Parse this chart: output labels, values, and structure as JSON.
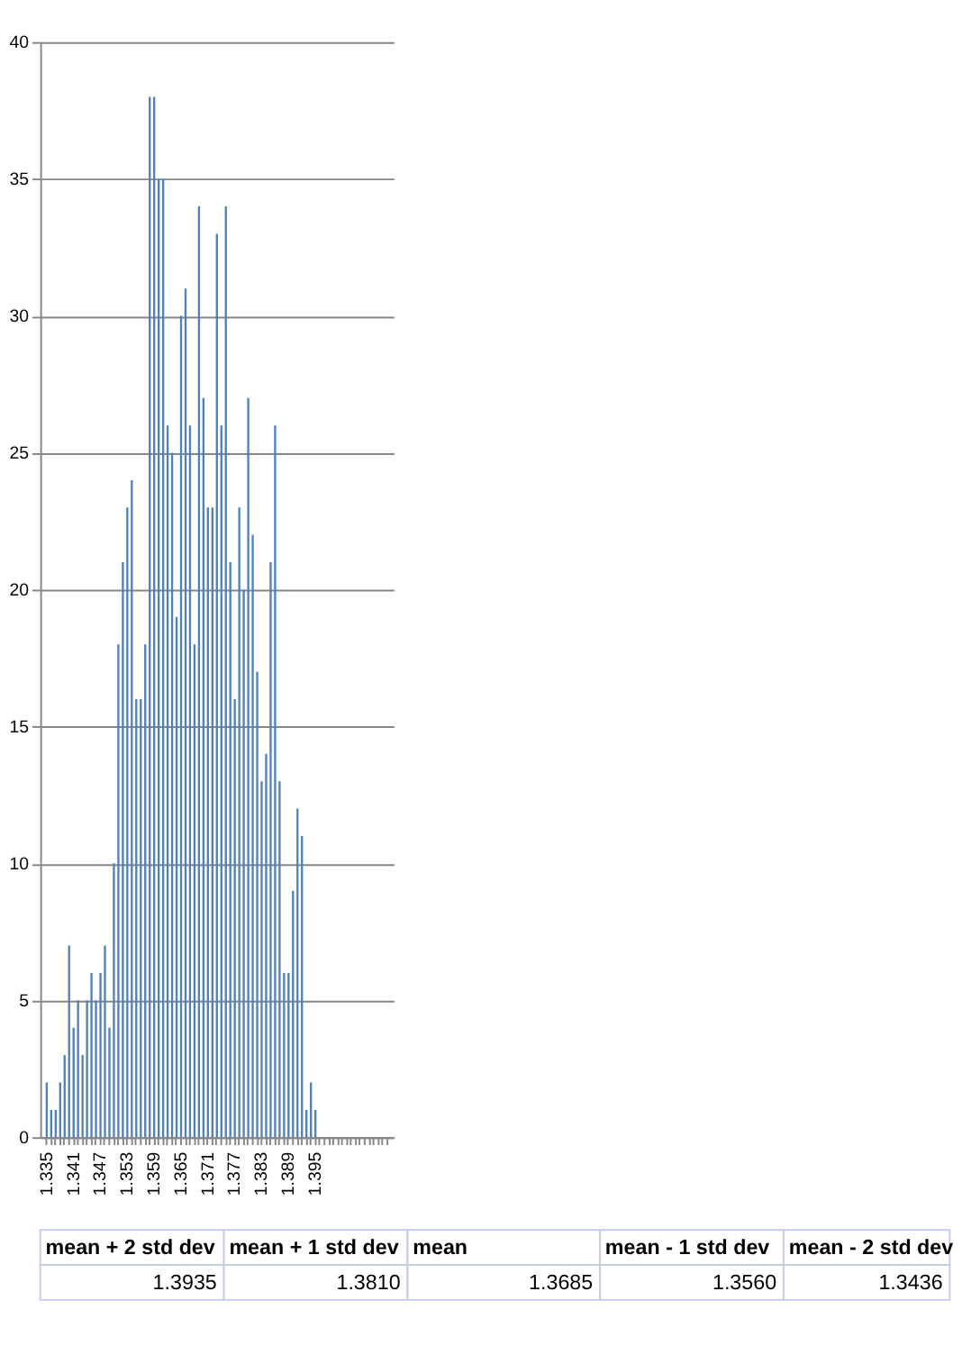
{
  "chart_data": {
    "type": "bar",
    "categories": [
      "1.335",
      null,
      null,
      null,
      null,
      null,
      "1.341",
      null,
      null,
      null,
      null,
      null,
      "1.347",
      null,
      null,
      null,
      null,
      null,
      "1.353",
      null,
      null,
      null,
      null,
      null,
      "1.359",
      null,
      null,
      null,
      null,
      null,
      "1.365",
      null,
      null,
      null,
      null,
      null,
      "1.371",
      null,
      null,
      null,
      null,
      null,
      "1.377",
      null,
      null,
      null,
      null,
      null,
      "1.383",
      null,
      null,
      null,
      null,
      null,
      "1.389",
      null,
      null,
      null,
      null,
      null,
      "1.395",
      null,
      null,
      null,
      null,
      null,
      null,
      null,
      null,
      null,
      null,
      null,
      null,
      null,
      null,
      null,
      null
    ],
    "values": [
      2,
      1,
      1,
      2,
      3,
      7,
      4,
      5,
      3,
      5,
      6,
      5,
      6,
      7,
      4,
      10,
      18,
      21,
      23,
      24,
      16,
      16,
      18,
      38,
      38,
      35,
      35,
      26,
      25,
      19,
      30,
      31,
      26,
      18,
      34,
      27,
      23,
      23,
      33,
      26,
      34,
      21,
      16,
      23,
      20,
      27,
      22,
      17,
      13,
      14,
      21,
      26,
      13,
      6,
      6,
      9,
      12,
      11,
      1,
      2,
      1,
      null,
      null,
      null,
      null,
      null,
      null,
      null,
      null,
      null,
      null,
      null,
      null,
      null,
      null,
      null,
      null
    ],
    "color": "#4f81bd",
    "ylim": [
      0,
      40
    ],
    "yticks": [
      0,
      5,
      10,
      15,
      20,
      25,
      30,
      35,
      40
    ],
    "grid": "y",
    "annotations": [
      "mean + 2 std dev",
      "mean + 1 std dev",
      "mean",
      "mean - 1 std dev",
      "mean - 2 std dev",
      "1.3935",
      "1.3810",
      "1.3685",
      "1.3560",
      "1.3436"
    ]
  }
}
